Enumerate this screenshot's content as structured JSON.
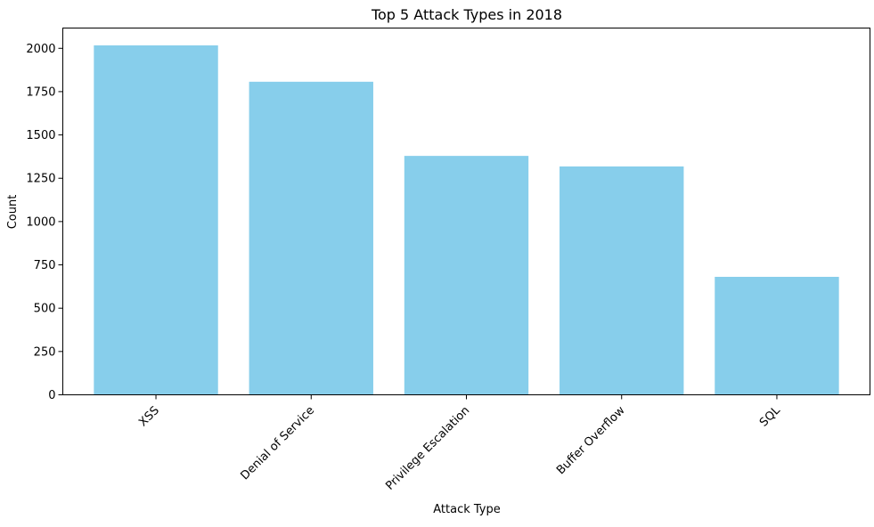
{
  "chart_data": {
    "type": "bar",
    "title": "Top 5 Attack Types in 2018",
    "xlabel": "Attack Type",
    "ylabel": "Count",
    "categories": [
      "XSS",
      "Denial of Service",
      "Privilege Escalation",
      "Buffer Overflow",
      "SQL"
    ],
    "values": [
      2017,
      1807,
      1379,
      1318,
      681
    ],
    "ylim": [
      0,
      2117
    ],
    "yticks": [
      0,
      250,
      500,
      750,
      1000,
      1250,
      1500,
      1750,
      2000
    ],
    "bar_color": "#87CEEB",
    "grid": false,
    "legend": "none"
  }
}
